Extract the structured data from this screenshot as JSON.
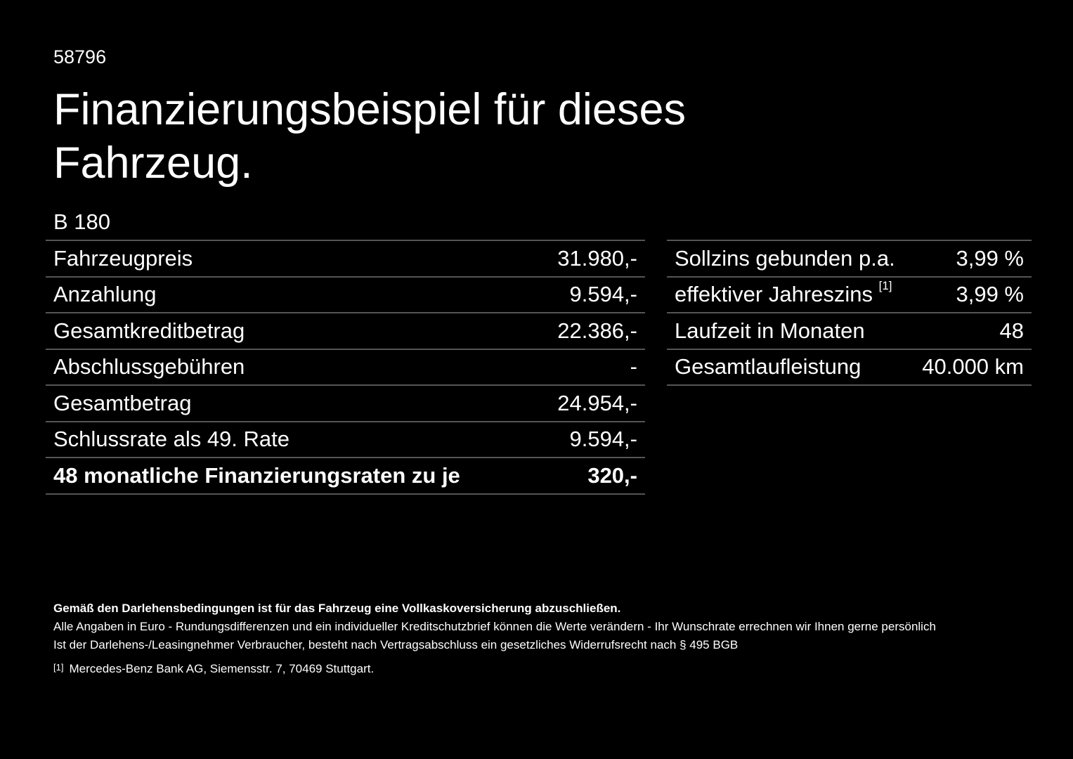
{
  "id_number": "58796",
  "title": "Finanzierungsbeispiel für dieses Fahrzeug.",
  "model": "B 180",
  "left_table": [
    {
      "label": "Fahrzeugpreis",
      "value": "31.980,-"
    },
    {
      "label": "Anzahlung",
      "value": "9.594,-"
    },
    {
      "label": "Gesamtkreditbetrag",
      "value": "22.386,-"
    },
    {
      "label": "Abschlussgebühren",
      "value": "-"
    },
    {
      "label": "Gesamtbetrag",
      "value": "24.954,-"
    },
    {
      "label": "Schlussrate als 49. Rate",
      "value": "9.594,-"
    },
    {
      "label": "48 monatliche Finanzierungsraten zu je",
      "value": "320,-"
    }
  ],
  "right_table": [
    {
      "label": "Sollzins gebunden p.a.",
      "value": "3,99 %"
    },
    {
      "label": "effektiver Jahreszins",
      "footnote": "[1]",
      "value": "3,99 %"
    },
    {
      "label": "Laufzeit in Monaten",
      "value": "48"
    },
    {
      "label": "Gesamtlaufleistung",
      "value": "40.000 km"
    }
  ],
  "notes": {
    "bold": "Gemäß den Darlehensbedingungen ist für das Fahrzeug eine Vollkaskoversicherung abzuschließen.",
    "line1": "Alle Angaben in Euro - Rundungsdifferenzen und ein individueller Kreditschutzbrief können die Werte verändern - Ihr Wunschrate errechnen wir Ihnen gerne persönlich",
    "line2": "Ist der Darlehens-/Leasingnehmer Verbraucher, besteht nach Vertragsabschluss ein gesetzliches Widerrufsrecht nach § 495 BGB",
    "footnote_marker": "[1]",
    "footnote_text": "Mercedes-Benz Bank AG, Siemensstr. 7, 70469 Stuttgart."
  }
}
